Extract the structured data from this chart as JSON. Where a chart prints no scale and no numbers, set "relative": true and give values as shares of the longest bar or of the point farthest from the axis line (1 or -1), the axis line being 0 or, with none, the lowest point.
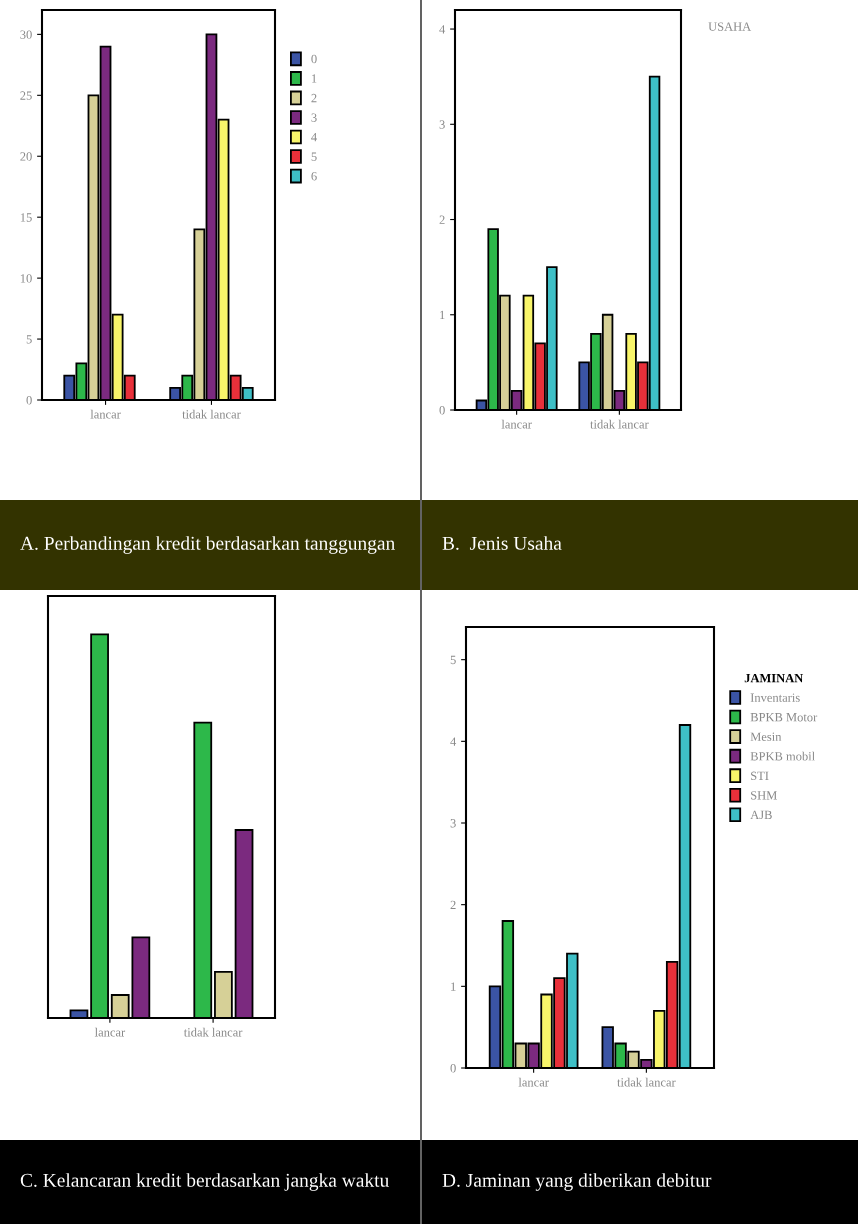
{
  "chart_data": [
    {
      "type": "bar",
      "title": "A. Perbandingan kredit berdasarkan tanggungan",
      "categories": [
        "lancar",
        "tidak lancar"
      ],
      "ylim": [
        0,
        32
      ],
      "yticks": [
        0,
        5,
        10,
        15,
        20,
        25,
        30
      ],
      "legend": "right",
      "series": [
        {
          "name": "0",
          "color": "#3b54a4",
          "values": [
            2,
            1
          ]
        },
        {
          "name": "1",
          "color": "#2db84a",
          "values": [
            3,
            2
          ]
        },
        {
          "name": "2",
          "color": "#d6d097",
          "values": [
            25,
            14
          ]
        },
        {
          "name": "3",
          "color": "#7b2a7f",
          "values": [
            29,
            30
          ]
        },
        {
          "name": "4",
          "color": "#f8f56a",
          "values": [
            7,
            23
          ]
        },
        {
          "name": "5",
          "color": "#e8303a",
          "values": [
            2,
            2
          ]
        },
        {
          "name": "6",
          "color": "#3ebfc6",
          "values": [
            null,
            1
          ]
        }
      ]
    },
    {
      "type": "bar",
      "title": "B.  Jenis Usaha",
      "legend_title": "USAHA",
      "categories": [
        "lancar",
        "tidak lancar"
      ],
      "ylim": [
        0,
        4.2
      ],
      "yticks": [
        0,
        1,
        2,
        3,
        4
      ],
      "series": [
        {
          "color": "#3b54a4",
          "values": [
            0.1,
            0.5
          ]
        },
        {
          "color": "#2db84a",
          "values": [
            1.9,
            0.8
          ]
        },
        {
          "color": "#d6d097",
          "values": [
            1.2,
            1.0
          ]
        },
        {
          "color": "#7b2a7f",
          "values": [
            0.2,
            0.2
          ]
        },
        {
          "color": "#f8f56a",
          "values": [
            1.2,
            0.8
          ]
        },
        {
          "color": "#e8303a",
          "values": [
            0.7,
            0.5
          ]
        },
        {
          "color": "#3ebfc6",
          "values": [
            1.5,
            3.5
          ]
        }
      ]
    },
    {
      "type": "bar",
      "title": "C. Kelancaran kredit berdasarkan jangka waktu",
      "categories": [
        "lancar",
        "tidak lancar"
      ],
      "relative": true,
      "series": [
        {
          "color": "#3b54a4",
          "values": [
            0.02,
            null
          ]
        },
        {
          "color": "#2db84a",
          "values": [
            1,
            0.77
          ]
        },
        {
          "color": "#d6d097",
          "values": [
            0.06,
            0.12
          ]
        },
        {
          "color": "#7b2a7f",
          "values": [
            0.21,
            0.49
          ]
        }
      ]
    },
    {
      "type": "bar",
      "title": "D. Jaminan yang diberikan debitur",
      "legend_title": "JAMINAN",
      "categories": [
        "lancar",
        "tidak lancar"
      ],
      "ylim": [
        0,
        5.4
      ],
      "yticks": [
        0,
        1,
        2,
        3,
        4,
        5
      ],
      "legend": "right",
      "series": [
        {
          "name": "Inventaris",
          "color": "#3b54a4",
          "values": [
            1.0,
            0.5
          ]
        },
        {
          "name": "BPKB Motor",
          "color": "#2db84a",
          "values": [
            1.8,
            0.3
          ]
        },
        {
          "name": "Mesin",
          "color": "#d6d097",
          "values": [
            0.3,
            0.2
          ]
        },
        {
          "name": "BPKB mobil",
          "color": "#7b2a7f",
          "values": [
            0.3,
            0.1
          ]
        },
        {
          "name": "STI",
          "color": "#f8f56a",
          "values": [
            0.9,
            0.7
          ]
        },
        {
          "name": "SHM",
          "color": "#e8303a",
          "values": [
            1.1,
            1.3
          ]
        },
        {
          "name": "AJB",
          "color": "#3ebfc6",
          "values": [
            1.4,
            4.2
          ]
        }
      ]
    }
  ]
}
